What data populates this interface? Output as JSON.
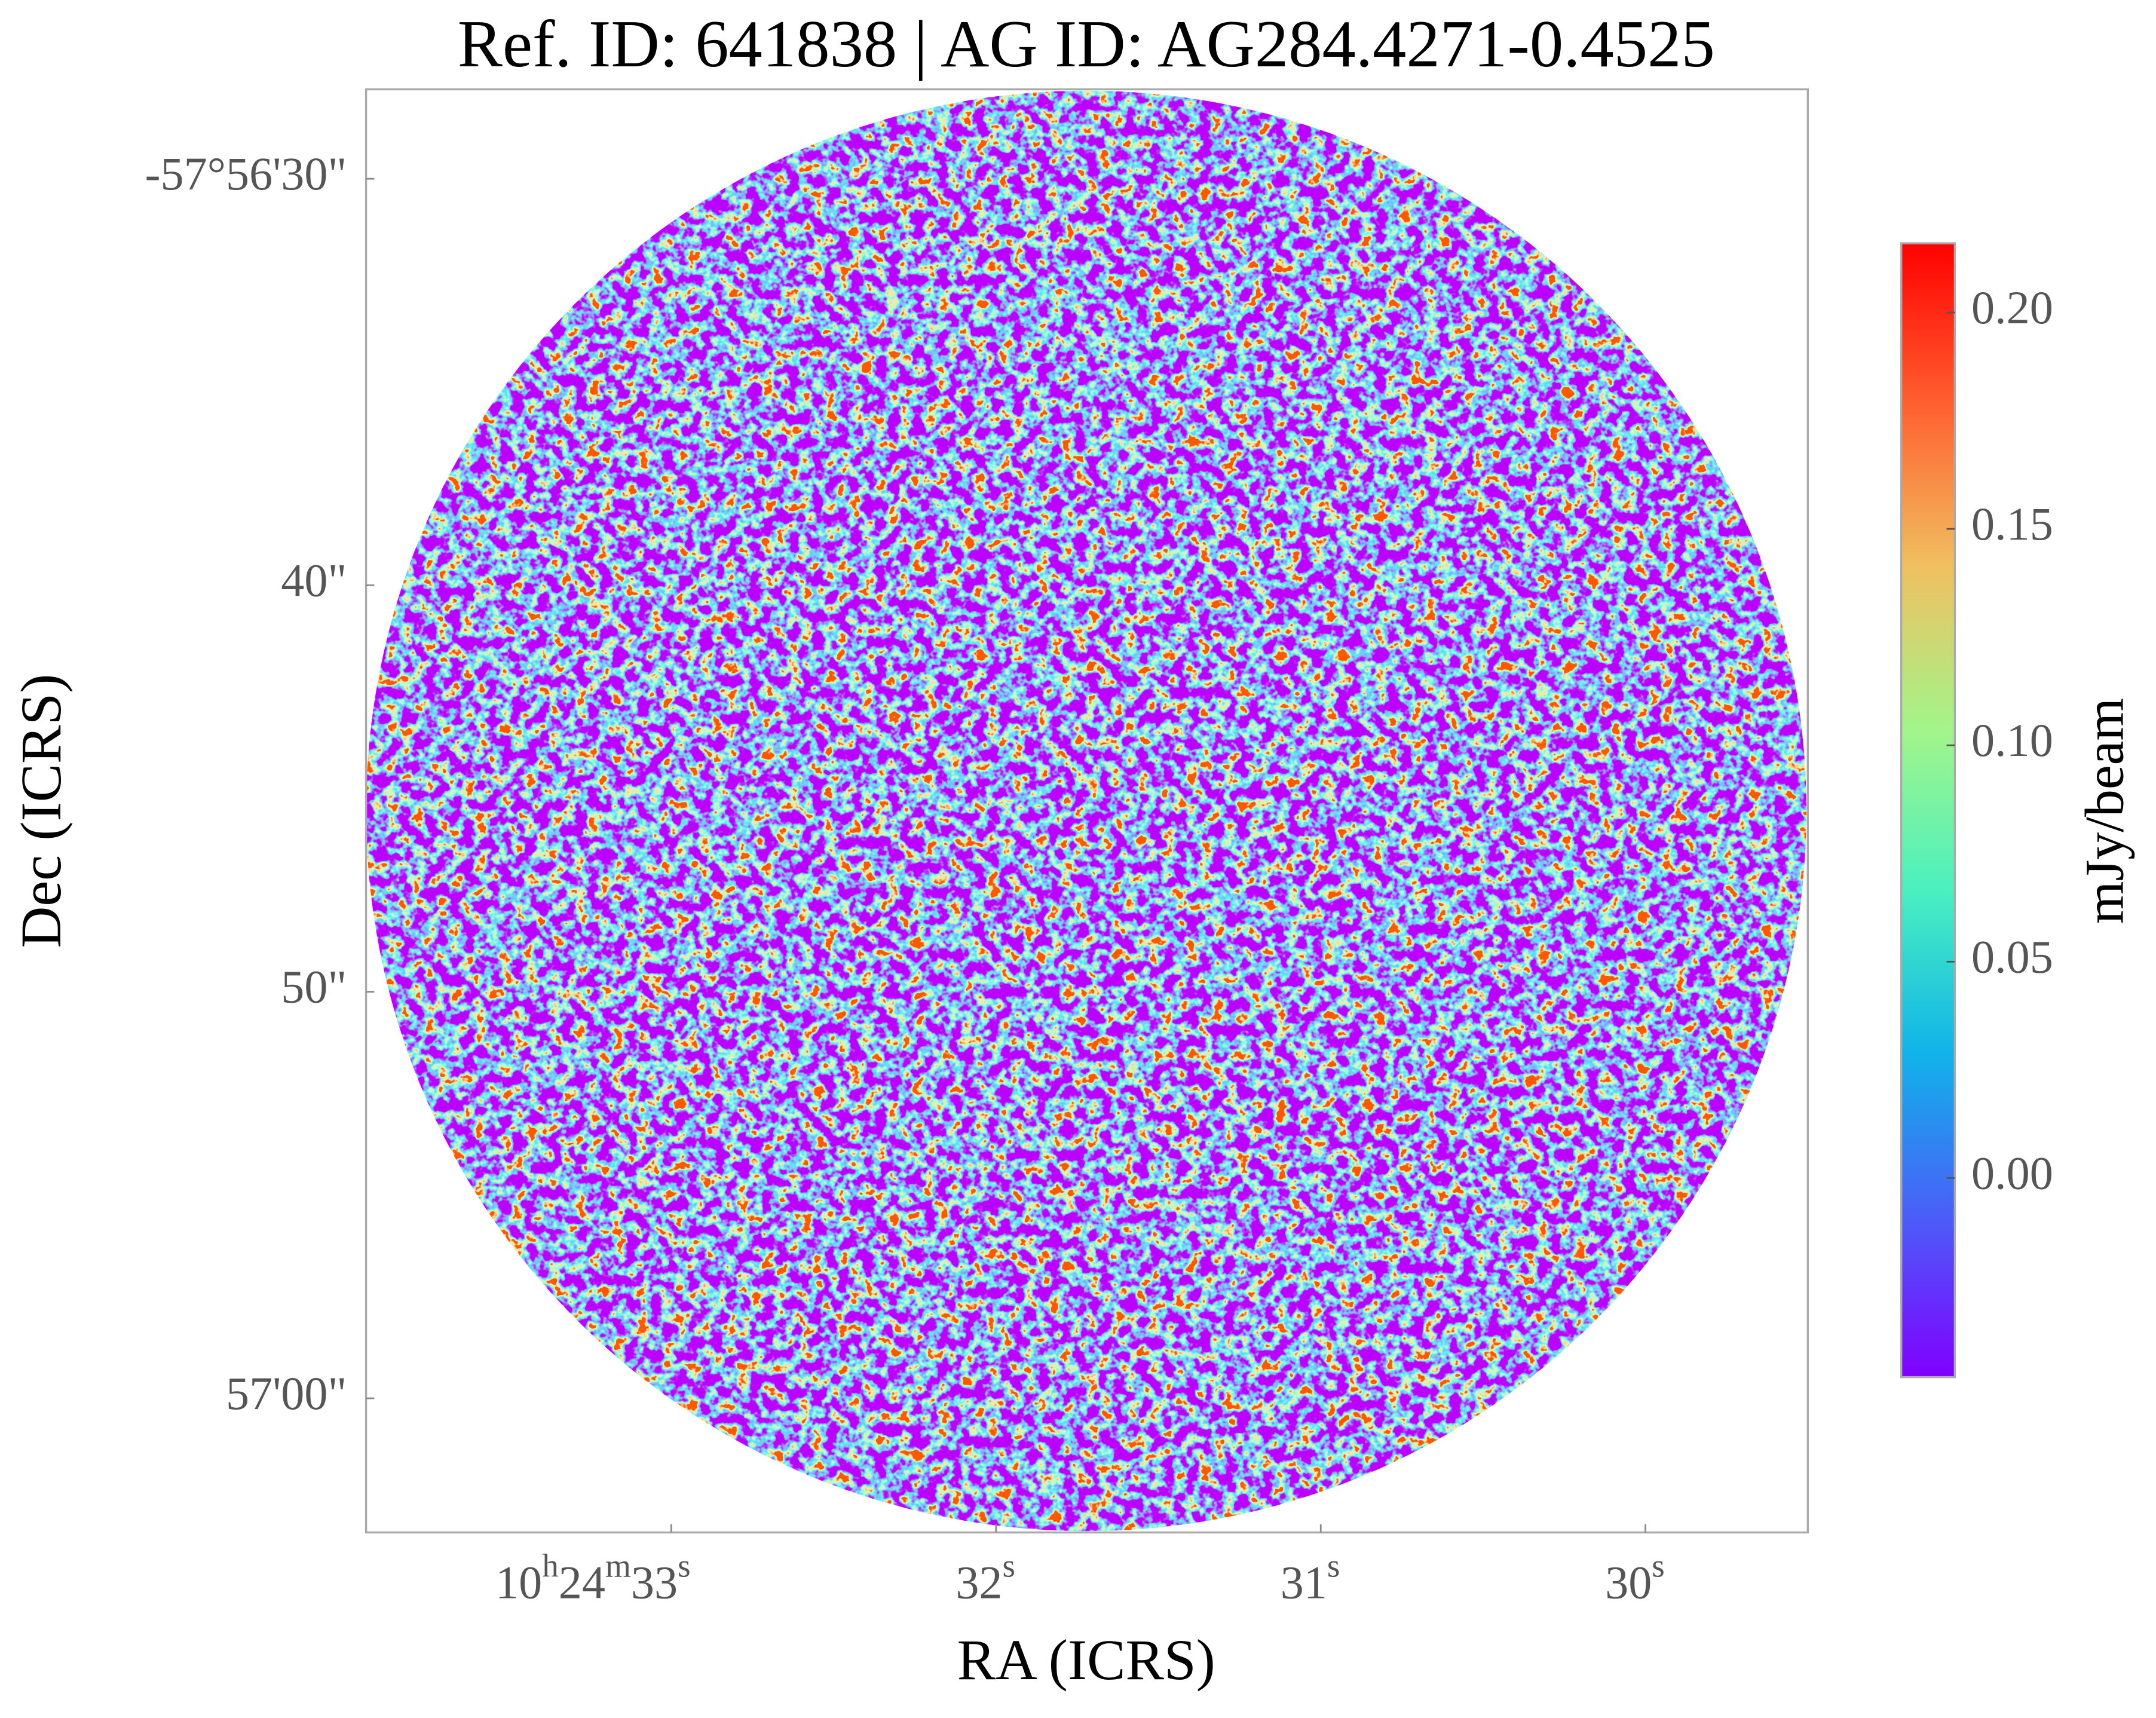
{
  "chart_data": {
    "type": "image",
    "title": "Ref. ID: 641838 | AG ID: AG284.4271-0.4525",
    "x_label": "RA (ICRS)",
    "y_label": "Dec (ICRS)",
    "xlim": [
      33.94,
      29.5
    ],
    "xticks": [
      {
        "value": 33,
        "label": "10h24m33s"
      },
      {
        "value": 32,
        "label": "32s"
      },
      {
        "value": 31,
        "label": "31s"
      },
      {
        "value": 30,
        "label": "30s"
      }
    ],
    "ylim": [
      27.8,
      63.3
    ],
    "yticks": [
      {
        "value": 30,
        "label": "-57°56'30\""
      },
      {
        "value": 40,
        "label": "40\""
      },
      {
        "value": 50,
        "label": "50\""
      },
      {
        "value": 60,
        "label": "57'00\""
      }
    ],
    "colorbar": {
      "label": "mJy/beam",
      "lim": [
        -0.046,
        0.216
      ],
      "ticks": [
        {
          "value": 0,
          "label": "0.00"
        },
        0.05,
        {
          "value": 0.1,
          "label": "0.10"
        },
        0.15,
        {
          "value": 0.2,
          "label": "0.20"
        }
      ],
      "colormap": [
        "#8000ff",
        "#4a5ff8",
        "#10b3e9",
        "#4af0c0",
        "#a3f58a",
        "#f0c060",
        "#ff6030",
        "#ff0000"
      ]
    }
  }
}
